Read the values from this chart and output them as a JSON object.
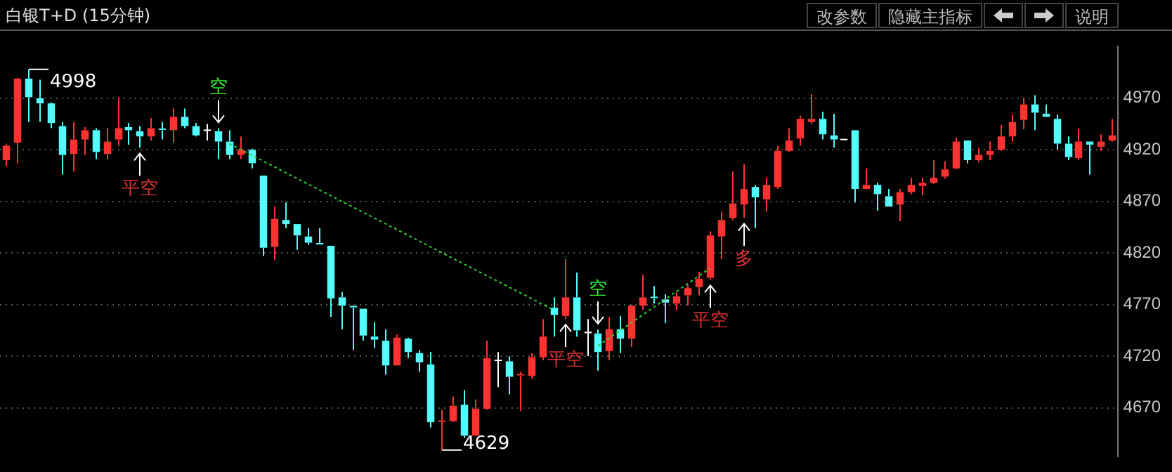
{
  "chart_data": {
    "type": "candlestick",
    "title": "白银T+D (15分钟)",
    "categories": [
      null,
      null,
      null,
      null,
      null,
      null,
      null,
      null,
      null,
      null,
      null,
      null,
      null,
      null,
      null,
      null,
      null,
      null,
      null,
      null,
      null,
      null,
      null,
      null,
      null,
      null,
      null,
      null,
      null,
      null,
      null,
      null,
      null,
      null,
      null,
      null,
      null,
      null,
      null,
      null,
      null,
      null,
      null,
      null,
      null,
      null,
      null,
      null,
      null,
      null,
      null,
      null,
      null,
      null,
      null,
      null,
      null,
      null,
      null,
      null,
      null,
      null,
      null,
      null,
      null,
      null,
      null,
      null,
      null,
      null,
      null,
      null,
      null,
      null,
      null,
      null,
      null,
      null,
      null,
      null,
      null,
      null,
      null,
      null,
      null,
      null,
      null,
      null,
      null,
      null,
      null,
      null,
      null,
      null,
      null,
      null,
      null,
      null,
      null,
      null
    ],
    "ohlc": [
      [
        4910,
        4926,
        4904,
        4924
      ],
      [
        4927,
        4990,
        4907,
        4989
      ],
      [
        4989,
        4998,
        4947,
        4971
      ],
      [
        4970,
        4988,
        4947,
        4965
      ],
      [
        4965,
        4966,
        4941,
        4946
      ],
      [
        4943,
        4947,
        4896,
        4915
      ],
      [
        4916,
        4947,
        4899,
        4930
      ],
      [
        4930,
        4942,
        4915,
        4939
      ],
      [
        4939,
        4941,
        4911,
        4918
      ],
      [
        4916,
        4941,
        4911,
        4928
      ],
      [
        4930,
        4971,
        4924,
        4941
      ],
      [
        4942,
        4946,
        4925,
        4939
      ],
      [
        4938,
        4943,
        4922,
        4933
      ],
      [
        4933,
        4951,
        4929,
        4941
      ],
      [
        4940,
        4947,
        4930,
        4939
      ],
      [
        4939,
        4960,
        4927,
        4952
      ],
      [
        4952,
        4960,
        4941,
        4943
      ],
      [
        4943,
        4946,
        4933,
        4934
      ],
      [
        4939,
        4945,
        4929,
        4939
      ],
      [
        4938,
        4941,
        4911,
        4928
      ],
      [
        4928,
        4939,
        4911,
        4915
      ],
      [
        4915,
        4933,
        4911,
        4920
      ],
      [
        4920,
        4921,
        4902,
        4907
      ],
      [
        4895,
        4895,
        4817,
        4825
      ],
      [
        4826,
        4865,
        4813,
        4853
      ],
      [
        4852,
        4869,
        4844,
        4848
      ],
      [
        4848,
        4848,
        4823,
        4837
      ],
      [
        4836,
        4844,
        4828,
        4830
      ],
      [
        4829,
        4844,
        4828,
        4828
      ],
      [
        4827,
        4827,
        4758,
        4776
      ],
      [
        4777,
        4782,
        4746,
        4769
      ],
      [
        4768,
        4769,
        4726,
        4767
      ],
      [
        4766,
        4766,
        4735,
        4740
      ],
      [
        4739,
        4753,
        4728,
        4736
      ],
      [
        4735,
        4746,
        4702,
        4711
      ],
      [
        4711,
        4741,
        4711,
        4738
      ],
      [
        4737,
        4738,
        4718,
        4724
      ],
      [
        4723,
        4726,
        4705,
        4714
      ],
      [
        4712,
        4724,
        4651,
        4656
      ],
      [
        4656,
        4668,
        4629,
        4657
      ],
      [
        4657,
        4681,
        4656,
        4672
      ],
      [
        4673,
        4687,
        4641,
        4643
      ],
      [
        4643,
        4678,
        4643,
        4669
      ],
      [
        4669,
        4735,
        4668,
        4718
      ],
      [
        4716,
        4724,
        4690,
        4716
      ],
      [
        4715,
        4720,
        4683,
        4700
      ],
      [
        4701,
        4705,
        4667,
        4702
      ],
      [
        4701,
        4723,
        4698,
        4719
      ],
      [
        4719,
        4756,
        4716,
        4739
      ],
      [
        4767,
        4777,
        4739,
        4760
      ],
      [
        4759,
        4814,
        4756,
        4777
      ],
      [
        4777,
        4801,
        4739,
        4745
      ],
      [
        4743,
        4756,
        4720,
        4743
      ],
      [
        4742,
        4746,
        4706,
        4724
      ],
      [
        4725,
        4758,
        4716,
        4746
      ],
      [
        4746,
        4759,
        4723,
        4737
      ],
      [
        4737,
        4770,
        4729,
        4769
      ],
      [
        4769,
        4799,
        4765,
        4777
      ],
      [
        4777,
        4788,
        4771,
        4776
      ],
      [
        4775,
        4780,
        4752,
        4772
      ],
      [
        4771,
        4782,
        4765,
        4778
      ],
      [
        4779,
        4789,
        4769,
        4786
      ],
      [
        4787,
        4802,
        4779,
        4795
      ],
      [
        4796,
        4841,
        4794,
        4837
      ],
      [
        4836,
        4860,
        4814,
        4852
      ],
      [
        4854,
        4899,
        4852,
        4868
      ],
      [
        4867,
        4906,
        4854,
        4882
      ],
      [
        4884,
        4886,
        4844,
        4874
      ],
      [
        4872,
        4893,
        4860,
        4886
      ],
      [
        4884,
        4924,
        4882,
        4919
      ],
      [
        4919,
        4941,
        4918,
        4929
      ],
      [
        4931,
        4953,
        4924,
        4950
      ],
      [
        4947,
        4974,
        4945,
        4950
      ],
      [
        4950,
        4957,
        4930,
        4935
      ],
      [
        4934,
        4955,
        4922,
        4930
      ],
      [
        4930,
        4930,
        4930,
        4930
      ],
      [
        4939,
        4939,
        4869,
        4882
      ],
      [
        4882,
        4902,
        4882,
        4886
      ],
      [
        4886,
        4888,
        4861,
        4877
      ],
      [
        4875,
        4882,
        4865,
        4865
      ],
      [
        4867,
        4882,
        4851,
        4879
      ],
      [
        4879,
        4893,
        4877,
        4886
      ],
      [
        4885,
        4893,
        4876,
        4888
      ],
      [
        4888,
        4910,
        4887,
        4893
      ],
      [
        4894,
        4909,
        4892,
        4901
      ],
      [
        4902,
        4932,
        4901,
        4928
      ],
      [
        4929,
        4929,
        4907,
        4910
      ],
      [
        4910,
        4922,
        4908,
        4915
      ],
      [
        4915,
        4928,
        4910,
        4919
      ],
      [
        4920,
        4944,
        4919,
        4933
      ],
      [
        4933,
        4954,
        4928,
        4947
      ],
      [
        4949,
        4970,
        4940,
        4964
      ],
      [
        4964,
        4973,
        4939,
        4956
      ],
      [
        4955,
        4964,
        4952,
        4952
      ],
      [
        4950,
        4954,
        4920,
        4926
      ],
      [
        4926,
        4933,
        4910,
        4913
      ],
      [
        4912,
        4940,
        4910,
        4928
      ],
      [
        4928,
        4928,
        4896,
        4925
      ],
      [
        4923,
        4935,
        4919,
        4928
      ],
      [
        4929,
        4950,
        4928,
        4934
      ]
    ],
    "colors": [
      "#ff3232",
      "#ff3232",
      "#54fcfc",
      "#54fcfc",
      "#54fcfc",
      "#54fcfc",
      "#ff3232",
      "#ff3232",
      "#54fcfc",
      "#ff3232",
      "#ff3232",
      "#54fcfc",
      "#54fcfc",
      "#ff3232",
      "#54fcfc",
      "#ff3232",
      "#54fcfc",
      "#54fcfc",
      "#ffffff",
      "#54fcfc",
      "#54fcfc",
      "#ff3232",
      "#54fcfc",
      "#54fcfc",
      "#ff3232",
      "#54fcfc",
      "#54fcfc",
      "#54fcfc",
      "#54fcfc",
      "#54fcfc",
      "#54fcfc",
      "#54fcfc",
      "#54fcfc",
      "#54fcfc",
      "#54fcfc",
      "#ff3232",
      "#54fcfc",
      "#54fcfc",
      "#54fcfc",
      "#ff3232",
      "#ff3232",
      "#54fcfc",
      "#ff3232",
      "#ff3232",
      "#ffffff",
      "#54fcfc",
      "#ff3232",
      "#ff3232",
      "#ff3232",
      "#54fcfc",
      "#ff3232",
      "#54fcfc",
      "#ffffff",
      "#54fcfc",
      "#ff3232",
      "#54fcfc",
      "#ff3232",
      "#ff3232",
      "#54fcfc",
      "#54fcfc",
      "#ff3232",
      "#ff3232",
      "#ff3232",
      "#ff3232",
      "#ff3232",
      "#ff3232",
      "#ff3232",
      "#54fcfc",
      "#ff3232",
      "#ff3232",
      "#ff3232",
      "#ff3232",
      "#ff3232",
      "#54fcfc",
      "#54fcfc",
      "#ffffff",
      "#54fcfc",
      "#ff3232",
      "#54fcfc",
      "#54fcfc",
      "#ff3232",
      "#ff3232",
      "#ff3232",
      "#ff3232",
      "#ff3232",
      "#ff3232",
      "#54fcfc",
      "#ff3232",
      "#ff3232",
      "#ff3232",
      "#ff3232",
      "#ff3232",
      "#54fcfc",
      "#54fcfc",
      "#54fcfc",
      "#54fcfc",
      "#ff3232",
      "#54fcfc",
      "#ff3232",
      "#ff3232"
    ],
    "series": [
      {
        "type": "line",
        "values": [
          null,
          null,
          null,
          null,
          null,
          null,
          null,
          null,
          null,
          null,
          null,
          null,
          null,
          null,
          null,
          null,
          null,
          null,
          null,
          null,
          4926,
          null,
          null,
          null,
          null,
          null,
          null,
          null,
          null,
          null,
          null,
          null,
          null,
          null,
          null,
          null,
          null,
          null,
          null,
          null,
          null,
          null,
          null,
          null,
          null,
          null,
          null,
          null,
          null,
          4765,
          null,
          null,
          null,
          null,
          null,
          null,
          null,
          null,
          null,
          null,
          null,
          null,
          null,
          null,
          null,
          null,
          null,
          null,
          null,
          null,
          null,
          null,
          null,
          null,
          null,
          null,
          null,
          null,
          null,
          null,
          null,
          null,
          null,
          null,
          null,
          null,
          null,
          null,
          null,
          null,
          null,
          null,
          null,
          null,
          null,
          null,
          null,
          null,
          null,
          null
        ],
        "color": "#33cc33",
        "line_style": "dashed"
      },
      {
        "type": "line",
        "values": [
          null,
          null,
          null,
          null,
          null,
          null,
          null,
          null,
          null,
          null,
          null,
          null,
          null,
          null,
          null,
          null,
          null,
          null,
          null,
          null,
          null,
          null,
          null,
          null,
          null,
          null,
          null,
          null,
          null,
          null,
          null,
          null,
          null,
          null,
          null,
          null,
          null,
          null,
          null,
          null,
          null,
          null,
          null,
          null,
          null,
          null,
          null,
          null,
          null,
          null,
          null,
          null,
          null,
          4730,
          null,
          null,
          null,
          null,
          null,
          null,
          null,
          null,
          null,
          4805,
          null,
          null,
          null,
          null,
          null,
          null,
          null,
          null,
          null,
          null,
          null,
          null,
          null,
          null,
          null,
          null,
          null,
          null,
          null,
          null,
          null,
          null,
          null,
          null,
          null,
          null,
          null,
          null,
          null,
          null,
          null,
          null,
          null,
          null,
          null,
          null
        ],
        "color": "#33cc33",
        "line_style": "dashed"
      }
    ],
    "marker": "none",
    "ylim": [
      4623,
      5020
    ],
    "yticks": [
      4670,
      4720,
      4770,
      4820,
      4870,
      4920,
      4970
    ],
    "grid": "y",
    "legend": false,
    "tick_labels": "y",
    "annotations": [
      "改参数",
      "隐藏主指标",
      "说明",
      "4998",
      "4629",
      "平空",
      "空",
      "平空",
      "空",
      "平空",
      "多"
    ]
  }
}
